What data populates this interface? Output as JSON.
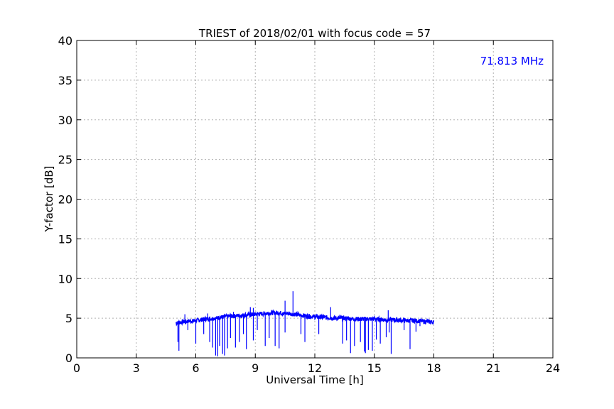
{
  "chart_data": {
    "type": "line",
    "title": "TRIEST of 2018/02/01 with focus code = 57",
    "xlabel": "Universal Time [h]",
    "ylabel": "Y-factor [dB]",
    "xlim": [
      0,
      24
    ],
    "ylim": [
      0,
      40
    ],
    "xticks": [
      "0",
      "3",
      "6",
      "9",
      "12",
      "15",
      "18",
      "21",
      "24"
    ],
    "yticks": [
      "0",
      "5",
      "10",
      "15",
      "20",
      "25",
      "30",
      "35",
      "40"
    ],
    "grid": true,
    "annotation": "71.813 MHz",
    "series_color": "#0000ff",
    "series": [
      {
        "baseline": {
          "x": [
            5.0,
            5.5,
            6.0,
            6.5,
            7.0,
            7.5,
            8.0,
            8.5,
            9.0,
            9.5,
            10.0,
            10.5,
            11.0,
            11.5,
            12.0,
            12.5,
            13.0,
            13.5,
            14.0,
            14.5,
            15.0,
            15.5,
            16.0,
            16.5,
            17.0,
            17.5,
            18.0
          ],
          "y": [
            4.4,
            4.6,
            4.7,
            4.9,
            5.0,
            5.2,
            5.3,
            5.4,
            5.5,
            5.6,
            5.7,
            5.6,
            5.5,
            5.3,
            5.2,
            5.1,
            5.0,
            5.0,
            4.9,
            4.9,
            4.9,
            4.8,
            4.8,
            4.7,
            4.7,
            4.6,
            4.5
          ]
        },
        "dips": [
          [
            5.1,
            2.0
          ],
          [
            5.15,
            0.9
          ],
          [
            5.6,
            3.5
          ],
          [
            6.0,
            1.8
          ],
          [
            6.4,
            3.0
          ],
          [
            6.7,
            2.0
          ],
          [
            6.85,
            1.3
          ],
          [
            7.0,
            0.3
          ],
          [
            7.1,
            0.2
          ],
          [
            7.2,
            1.5
          ],
          [
            7.35,
            0.5
          ],
          [
            7.45,
            0.3
          ],
          [
            7.6,
            1.2
          ],
          [
            7.75,
            2.5
          ],
          [
            8.0,
            1.3
          ],
          [
            8.2,
            2.0
          ],
          [
            8.4,
            3.0
          ],
          [
            8.55,
            1.1
          ],
          [
            8.9,
            2.2
          ],
          [
            9.1,
            3.5
          ],
          [
            9.5,
            1.5
          ],
          [
            9.7,
            2.5
          ],
          [
            10.0,
            1.5
          ],
          [
            10.2,
            1.2
          ],
          [
            10.5,
            3.2
          ],
          [
            11.3,
            3.0
          ],
          [
            11.5,
            2.0
          ],
          [
            12.2,
            3.0
          ],
          [
            13.4,
            1.8
          ],
          [
            13.6,
            2.2
          ],
          [
            13.8,
            0.6
          ],
          [
            14.0,
            1.5
          ],
          [
            14.3,
            2.0
          ],
          [
            14.5,
            0.8
          ],
          [
            14.55,
            0.6
          ],
          [
            14.7,
            1.0
          ],
          [
            14.9,
            0.9
          ],
          [
            15.1,
            2.3
          ],
          [
            15.3,
            1.8
          ],
          [
            15.6,
            2.6
          ],
          [
            15.75,
            3.2
          ],
          [
            15.85,
            0.5
          ],
          [
            16.5,
            3.5
          ],
          [
            16.8,
            1.1
          ],
          [
            17.1,
            3.3
          ],
          [
            17.3,
            4.0
          ]
        ],
        "spikes": [
          [
            5.45,
            5.5
          ],
          [
            6.6,
            5.6
          ],
          [
            7.9,
            5.8
          ],
          [
            8.75,
            6.4
          ],
          [
            8.9,
            6.3
          ],
          [
            10.9,
            8.4
          ],
          [
            10.5,
            7.2
          ],
          [
            12.8,
            6.4
          ],
          [
            15.7,
            6.0
          ]
        ]
      }
    ]
  }
}
